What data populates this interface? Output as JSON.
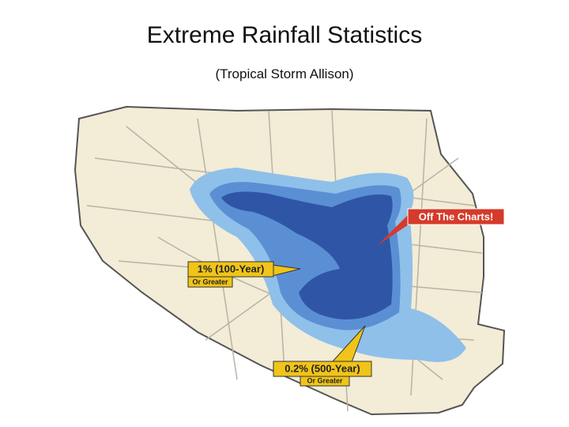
{
  "header": {
    "title": "Extreme Rainfall Statistics",
    "subtitle": "(Tropical Storm Allison)"
  },
  "callouts": [
    {
      "label": "Off The Charts!"
    },
    {
      "label": "1% (100-Year)",
      "sublabel": "Or Greater"
    },
    {
      "label": "0.2% (500-Year)",
      "sublabel": "Or Greater"
    }
  ]
}
